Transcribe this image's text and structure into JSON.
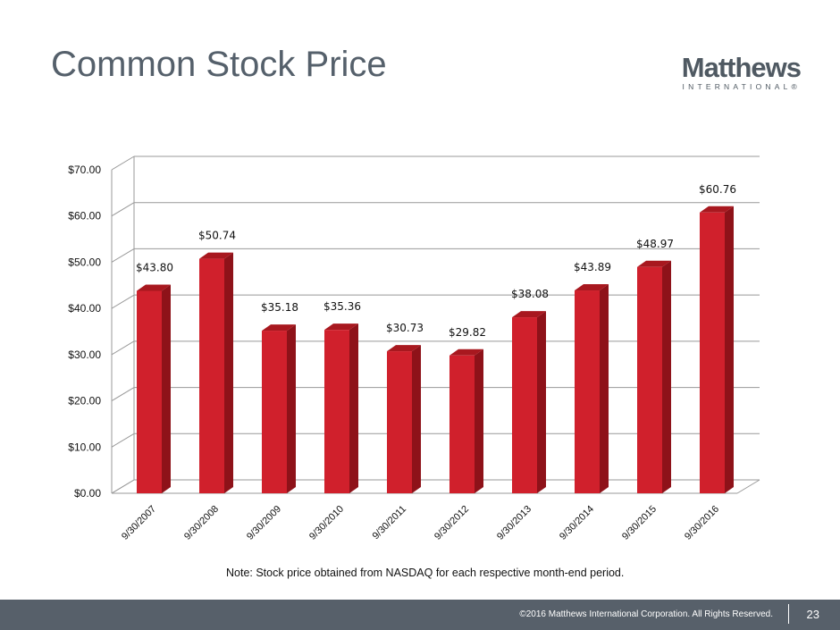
{
  "slide": {
    "title": "Common Stock Price",
    "logo_word": "Matthews",
    "logo_sub": "INTERNATIONAL®",
    "note": "Note: Stock price obtained from NASDAQ for each respective month-end period.",
    "copyright": "©2016 Matthews International Corporation. All Rights Reserved.",
    "page_number": "23"
  },
  "colors": {
    "bar_front": "#d0202c",
    "bar_side": "#8e1219",
    "bar_top": "#a8181f",
    "grid": "#999999",
    "title": "#55606b",
    "footer": "#57606a"
  },
  "chart_data": {
    "type": "bar",
    "title": "",
    "xlabel": "",
    "ylabel": "",
    "categories": [
      "9/30/2007",
      "9/30/2008",
      "9/30/2009",
      "9/30/2010",
      "9/30/2011",
      "9/30/2012",
      "9/30/2013",
      "9/30/2014",
      "9/30/2015",
      "9/30/2016"
    ],
    "values": [
      43.8,
      50.74,
      35.18,
      35.36,
      30.73,
      29.82,
      38.08,
      43.89,
      48.97,
      60.76
    ],
    "data_labels": [
      "$43.80",
      "$50.74",
      "$35.18",
      "$35.36",
      "$30.73",
      "$29.82",
      "$38.08",
      "$43.89",
      "$48.97",
      "$60.76"
    ],
    "ylim": [
      0,
      70
    ],
    "yticks": [
      0,
      10,
      20,
      30,
      40,
      50,
      60,
      70
    ],
    "ytick_labels": [
      "$0.00",
      "$10.00",
      "$20.00",
      "$30.00",
      "$40.00",
      "$50.00",
      "$60.00",
      "$70.00"
    ],
    "grid": true,
    "legend": "none"
  }
}
